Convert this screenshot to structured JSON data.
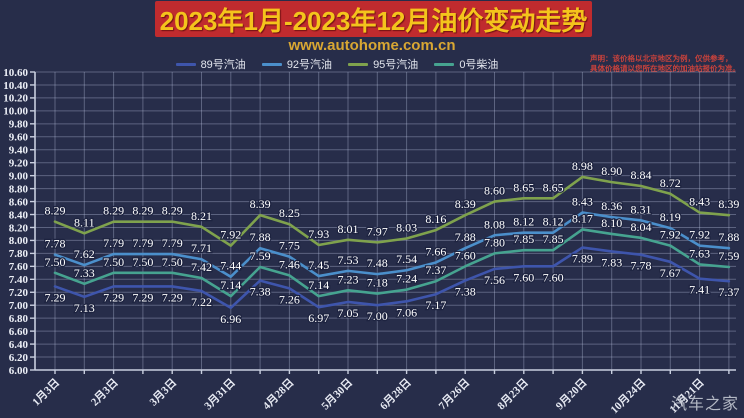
{
  "header": {
    "title": "2023年1月-2023年12月油价变动走势",
    "subtitle": "www.autohome.com.cn"
  },
  "disclaimer": {
    "line1": "声明：该价格以北京地区为例，仅供参考，",
    "line2": "具体价格请以您所在地区的加油站报价为准。"
  },
  "watermark": "汽车之家",
  "colors": {
    "banner_bg": "#C02B2E",
    "title_text": "#F4C41C",
    "background": "#272D4A"
  },
  "chart_data": {
    "type": "line",
    "title": "2023年1月-2023年12月油价变动走势",
    "n_points": 24,
    "ylim": [
      6.0,
      10.6
    ],
    "y_step": 0.2,
    "grid": true,
    "legend_position": "top",
    "x_label_step": 2,
    "x_labels": [
      "1月3日",
      "2月3日",
      "3月3日",
      "3月31日",
      "4月28日",
      "5月30日",
      "6月28日",
      "7月26日",
      "8月23日",
      "9月20日",
      "10月24日",
      "11月21日"
    ],
    "series": [
      {
        "name": "89号汽油",
        "color": "#3E55AC",
        "label_side": "below",
        "values": [
          7.29,
          7.13,
          7.29,
          7.29,
          7.29,
          7.22,
          6.96,
          7.38,
          7.26,
          6.97,
          7.05,
          7.0,
          7.06,
          7.17,
          7.38,
          7.56,
          7.6,
          7.6,
          7.89,
          7.83,
          7.78,
          7.67,
          7.41,
          7.37
        ]
      },
      {
        "name": "92号汽油",
        "color": "#4B8FCB",
        "label_side": "above",
        "values": [
          7.78,
          7.62,
          7.79,
          7.79,
          7.79,
          7.71,
          7.44,
          7.88,
          7.75,
          7.45,
          7.53,
          7.48,
          7.54,
          7.66,
          7.88,
          8.08,
          8.12,
          8.12,
          8.43,
          8.36,
          8.31,
          8.19,
          7.92,
          7.88
        ]
      },
      {
        "name": "95号汽油",
        "color": "#7FA24D",
        "label_side": "above",
        "values": [
          8.29,
          8.11,
          8.29,
          8.29,
          8.29,
          8.21,
          7.92,
          8.39,
          8.25,
          7.93,
          8.01,
          7.97,
          8.03,
          8.16,
          8.39,
          8.6,
          8.65,
          8.65,
          8.98,
          8.9,
          8.84,
          8.72,
          8.43,
          8.39
        ]
      },
      {
        "name": "0号柴油",
        "color": "#46A390",
        "label_side": "above",
        "values": [
          7.5,
          7.33,
          7.5,
          7.5,
          7.5,
          7.42,
          7.14,
          7.59,
          7.46,
          7.14,
          7.23,
          7.18,
          7.24,
          7.37,
          7.6,
          7.8,
          7.85,
          7.85,
          8.17,
          8.1,
          8.04,
          7.92,
          7.63,
          7.59
        ]
      }
    ]
  }
}
